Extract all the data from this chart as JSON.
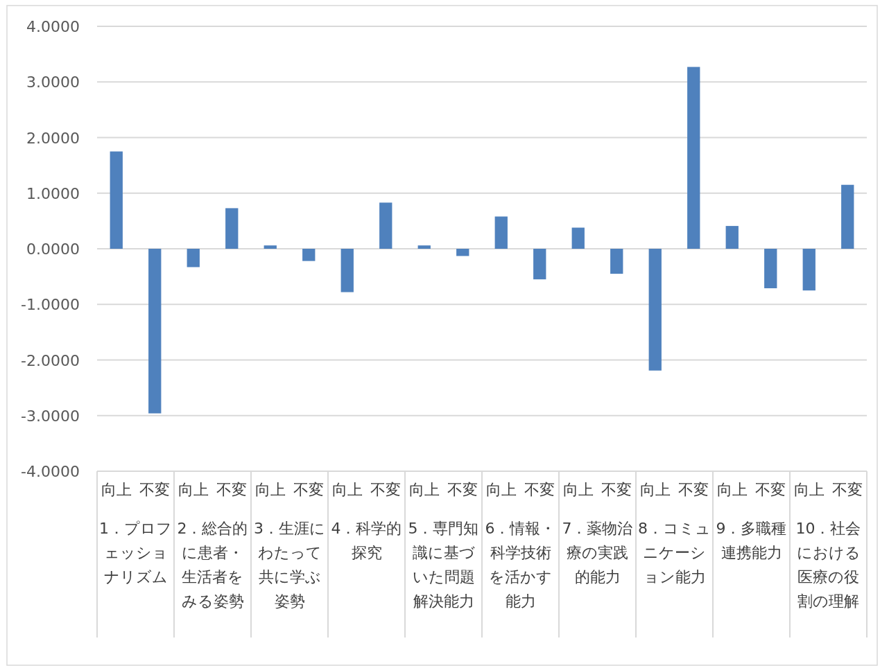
{
  "chart_data": {
    "type": "bar",
    "categories": [
      "向上",
      "不変",
      "向上",
      "不変",
      "向上",
      "不変",
      "向上",
      "不変",
      "向上",
      "不変",
      "向上",
      "不変",
      "向上",
      "不変",
      "向上",
      "不変",
      "向上",
      "不変",
      "向上",
      "不変"
    ],
    "values": [
      1.75,
      -2.96,
      -0.33,
      0.73,
      0.06,
      -0.22,
      -0.78,
      0.83,
      0.06,
      -0.13,
      0.58,
      -0.55,
      0.38,
      -0.45,
      -2.19,
      3.27,
      0.41,
      -0.71,
      -0.75,
      1.15
    ],
    "color": "#4f81bd",
    "ylim": [
      -4,
      4
    ],
    "yticks": [
      {
        "value": 4,
        "label": "4.0000"
      },
      {
        "value": 3,
        "label": "3.0000"
      },
      {
        "value": 2,
        "label": "2.0000"
      },
      {
        "value": 1,
        "label": "1.0000"
      },
      {
        "value": 0,
        "label": "0.0000"
      },
      {
        "value": -1,
        "label": "-1.0000"
      },
      {
        "value": -2,
        "label": "-2.0000"
      },
      {
        "value": -3,
        "label": "-3.0000"
      },
      {
        "value": -4,
        "label": "-4.0000"
      }
    ],
    "grid": "y",
    "annotations": [
      "1．プロフェッショナリズム",
      "2．総合的に患者・生活者をみる姿勢",
      "3．生涯にわたって共に学ぶ姿勢",
      "4．科学的探究",
      "5．専門知識に基づいた問題解決能力",
      "6．情報・科学技術を活かす能力",
      "7．薬物治療の実践的能力",
      "8．コミュニケーション能力",
      "9．多職種連携能力",
      "10．社会における医療の役割の理解"
    ]
  }
}
